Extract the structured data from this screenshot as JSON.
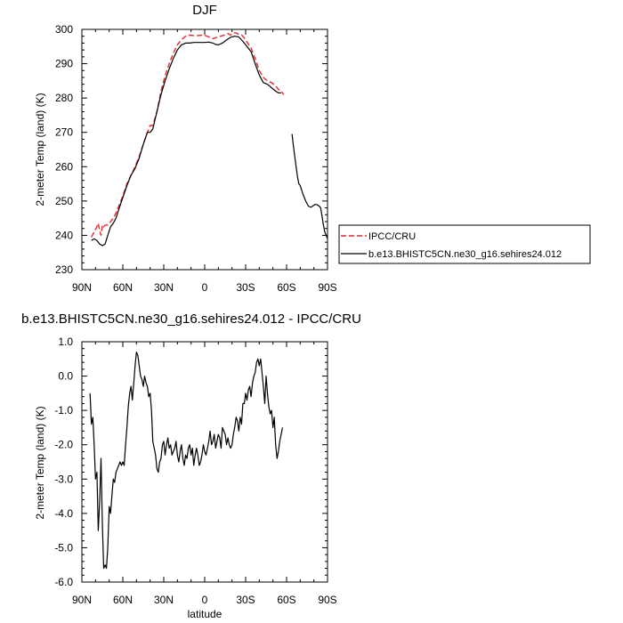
{
  "chart_data": [
    {
      "type": "line",
      "title": "DJF",
      "xlabel": "",
      "ylabel": "2-meter Temp (land) (K)",
      "xlim": [
        90,
        -90
      ],
      "ylim": [
        230,
        300
      ],
      "x_tick_values": [
        90,
        60,
        30,
        0,
        -30,
        -60,
        -90
      ],
      "x_tick_labels": [
        "90N",
        "60N",
        "30N",
        "0",
        "30S",
        "60S",
        "90S"
      ],
      "y_tick_values": [
        230,
        240,
        250,
        260,
        270,
        280,
        290,
        300
      ],
      "y_tick_labels": [
        "230",
        "240",
        "250",
        "260",
        "270",
        "280",
        "290",
        "300"
      ],
      "legend": {
        "placement": "right"
      },
      "series": [
        {
          "name": "IPCC/CRU",
          "color": "#e8262d",
          "dash": "dashed",
          "x": [
            83,
            81,
            79,
            78,
            77,
            76,
            75,
            74,
            73,
            71,
            69,
            67,
            65,
            63,
            60,
            57,
            54,
            51,
            48,
            45,
            42,
            40,
            38,
            35,
            32,
            29,
            26,
            23,
            20,
            17,
            14,
            11,
            8,
            5,
            2,
            0,
            -3,
            -6,
            -10,
            -14,
            -17,
            -19,
            -21,
            -23,
            -25,
            -27,
            -29,
            -31,
            -34,
            -37,
            -40,
            -43,
            -46,
            -49,
            -52,
            -54,
            -56,
            -58
          ],
          "y": [
            239.5,
            241,
            242.5,
            243.5,
            241.5,
            240,
            243,
            242.5,
            243,
            243,
            244,
            245,
            246.5,
            248.5,
            251.5,
            255,
            257.5,
            260,
            263,
            266.5,
            270,
            272,
            272,
            276,
            282,
            286.5,
            290,
            293,
            295.5,
            297,
            298,
            298.3,
            298.2,
            298.2,
            298.3,
            298.3,
            297.8,
            297.3,
            297.8,
            298.3,
            298.8,
            298.3,
            299,
            299,
            298.5,
            298.4,
            297.5,
            296.3,
            294.5,
            291.5,
            288,
            286,
            285,
            284.5,
            283.5,
            282.5,
            282,
            281
          ]
        },
        {
          "name": "b.e13.BHISTC5CN.ne30_g16.sehires24.012",
          "color": "#000000",
          "dash": "solid",
          "segments": [
            {
              "x": [
                83,
                81,
                79,
                77,
                75,
                73,
                71,
                69,
                67,
                65,
                63,
                60,
                57,
                54,
                51,
                48,
                45,
                42,
                40,
                38,
                35,
                32,
                29,
                26,
                23,
                20,
                17,
                14,
                11,
                8,
                5,
                2,
                0,
                -3,
                -6,
                -8,
                -10,
                -13,
                -16,
                -19,
                -22,
                -25,
                -28,
                -31,
                -34,
                -37,
                -40,
                -43,
                -46,
                -49,
                -52,
                -54,
                -56
              ],
              "y": [
                238.5,
                239,
                238.5,
                237.5,
                237,
                237.5,
                240,
                242.5,
                243.5,
                245,
                247.5,
                251,
                254.5,
                257.5,
                259.5,
                262.5,
                266.5,
                270,
                270,
                271,
                276,
                281,
                285,
                288.5,
                291.5,
                294,
                295.5,
                296,
                296,
                296.2,
                296.2,
                296.2,
                296.2,
                296.3,
                296,
                295.6,
                295.5,
                296,
                296.9,
                297.7,
                298,
                297.8,
                296.5,
                295,
                293.5,
                290,
                286.7,
                284.5,
                284,
                283,
                282,
                281.5,
                281.5
              ]
            },
            {
              "x": [
                -64,
                -65,
                -66,
                -67,
                -68,
                -69,
                -70,
                -72,
                -74,
                -76,
                -77,
                -78,
                -79,
                -80,
                -81,
                -82,
                -83,
                -84,
                -85,
                -86,
                -87,
                -88,
                -89,
                -90
              ],
              "y": [
                269.5,
                266,
                263,
                260,
                257,
                255,
                254.5,
                252,
                250,
                248.5,
                248.3,
                248.2,
                248.5,
                248.8,
                249,
                249,
                248.7,
                248.5,
                248,
                245.5,
                243,
                241,
                240,
                239
              ]
            }
          ]
        }
      ]
    },
    {
      "type": "line",
      "title": "b.e13.BHISTC5CN.ne30_g16.sehires24.012 - IPCC/CRU",
      "xlabel": "latitude",
      "ylabel": "2-meter Temp (land) (K)",
      "xlim": [
        90,
        -90
      ],
      "ylim": [
        -6.0,
        1.0
      ],
      "x_tick_values": [
        90,
        60,
        30,
        0,
        -30,
        -60,
        -90
      ],
      "x_tick_labels": [
        "90N",
        "60N",
        "30N",
        "0",
        "30S",
        "60S",
        "90S"
      ],
      "y_tick_values": [
        -6,
        -5,
        -4,
        -3,
        -2,
        -1,
        0,
        1
      ],
      "y_tick_labels": [
        "-6.0",
        "-5.0",
        "-4.0",
        "-3.0",
        "-2.0",
        "-1.0",
        "0.0",
        "1.0"
      ],
      "series": [
        {
          "color": "#000000",
          "dash": "solid",
          "x": [
            84,
            83,
            82,
            81,
            80,
            79,
            78,
            77,
            76,
            75,
            74,
            73,
            72,
            71,
            70,
            69,
            68,
            67,
            66,
            65,
            64,
            63,
            62,
            61,
            60,
            59,
            58,
            57,
            56,
            55,
            54,
            53,
            52,
            51,
            50,
            49,
            48,
            47,
            46,
            45,
            44,
            43,
            42,
            41,
            40,
            39,
            38,
            37,
            36,
            35,
            34,
            33,
            32,
            31,
            30,
            29,
            28,
            27,
            26,
            25,
            24,
            23,
            22,
            21,
            20,
            19,
            18,
            17,
            16,
            15,
            14,
            13,
            12,
            11,
            10,
            9,
            8,
            7,
            6,
            5,
            4,
            3,
            2,
            1,
            0,
            -1,
            -2,
            -3,
            -4,
            -5,
            -6,
            -7,
            -8,
            -9,
            -10,
            -11,
            -12,
            -13,
            -14,
            -15,
            -16,
            -17,
            -18,
            -19,
            -20,
            -21,
            -22,
            -23,
            -24,
            -25,
            -26,
            -27,
            -28,
            -29,
            -30,
            -31,
            -32,
            -33,
            -34,
            -35,
            -36,
            -37,
            -38,
            -39,
            -40,
            -41,
            -42,
            -43,
            -44,
            -45,
            -46,
            -47,
            -48,
            -49,
            -50,
            -51,
            -52,
            -53,
            -54,
            -55,
            -56,
            -57
          ],
          "y": [
            -0.5,
            -1.4,
            -1.2,
            -2.0,
            -3.0,
            -2.8,
            -4.5,
            -3.7,
            -2.4,
            -4.3,
            -5.6,
            -5.5,
            -5.6,
            -5.0,
            -3.8,
            -4.0,
            -3.5,
            -3.0,
            -3.1,
            -2.8,
            -2.7,
            -2.6,
            -2.5,
            -2.6,
            -2.5,
            -2.6,
            -2.0,
            -1.5,
            -0.9,
            -0.5,
            -0.3,
            -0.7,
            -0.2,
            0.3,
            0.7,
            0.6,
            0.3,
            0.0,
            -0.1,
            -0.3,
            0.0,
            -0.2,
            -0.3,
            -0.6,
            -0.5,
            -1.0,
            -1.9,
            -2.1,
            -2.3,
            -2.7,
            -2.8,
            -2.5,
            -2.4,
            -2.0,
            -1.9,
            -2.3,
            -2.0,
            -1.8,
            -2.1,
            -2.0,
            -2.3,
            -2.2,
            -2.1,
            -1.9,
            -2.3,
            -2.5,
            -2.2,
            -2.0,
            -2.4,
            -2.6,
            -2.3,
            -2.4,
            -2.1,
            -2.0,
            -2.3,
            -2.1,
            -2.6,
            -2.3,
            -2.1,
            -2.3,
            -2.6,
            -2.5,
            -2.3,
            -2.0,
            -2.2,
            -2.3,
            -2.1,
            -1.9,
            -1.6,
            -2.0,
            -1.9,
            -1.7,
            -2.1,
            -1.9,
            -1.7,
            -1.8,
            -2.1,
            -1.5,
            -1.6,
            -1.7,
            -2.0,
            -1.8,
            -2.0,
            -2.1,
            -2.0,
            -1.7,
            -1.5,
            -1.2,
            -1.3,
            -1.6,
            -1.2,
            -1.4,
            -0.8,
            -0.8,
            -0.5,
            -0.7,
            -0.4,
            -0.3,
            -0.6,
            -0.2,
            0.0,
            0.1,
            0.4,
            0.5,
            0.3,
            0.5,
            0.1,
            -0.3,
            -0.8,
            0.0,
            -0.5,
            -0.9,
            -1.1,
            -1.0,
            -1.5,
            -1.2,
            -2.0,
            -2.4,
            -2.2,
            -1.9,
            -1.7,
            -1.5
          ]
        }
      ]
    }
  ]
}
